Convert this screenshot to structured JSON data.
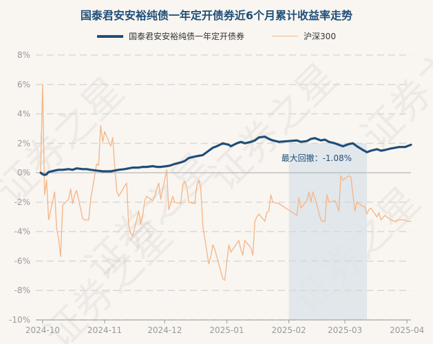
{
  "chart_data": {
    "type": "line",
    "title": "国泰君安安裕纯债一年定开债券近6个月累计收益率走势",
    "x_ticks": [
      "2024-10",
      "2024-11",
      "2024-12",
      "2025-01",
      "2025-02",
      "2025-03",
      "2025-04"
    ],
    "y_ticks": [
      "8%",
      "6%",
      "4%",
      "2%",
      "0%",
      "-2%",
      "-4%",
      "-6%",
      "-8%",
      "-10%"
    ],
    "ylim": [
      -10,
      8
    ],
    "x_range": [
      "2024-09-30",
      "2025-04-03"
    ],
    "grid": "horizontal dashed",
    "legend_position": "top",
    "series": [
      {
        "name": "国泰君安安裕纯债一年定开债券",
        "color": "#1f4e79",
        "points": [
          [
            "2024-09-30",
            0.0
          ],
          [
            "2024-10-01",
            -0.1
          ],
          [
            "2024-10-02",
            -0.15
          ],
          [
            "2024-10-03",
            -0.1
          ],
          [
            "2024-10-04",
            0.05
          ],
          [
            "2024-10-07",
            0.15
          ],
          [
            "2024-10-09",
            0.2
          ],
          [
            "2024-10-11",
            0.2
          ],
          [
            "2024-10-14",
            0.25
          ],
          [
            "2024-10-16",
            0.2
          ],
          [
            "2024-10-18",
            0.3
          ],
          [
            "2024-10-21",
            0.25
          ],
          [
            "2024-10-23",
            0.25
          ],
          [
            "2024-10-25",
            0.2
          ],
          [
            "2024-10-28",
            0.15
          ],
          [
            "2024-10-31",
            0.1
          ],
          [
            "2024-11-04",
            0.1
          ],
          [
            "2024-11-06",
            0.15
          ],
          [
            "2024-11-08",
            0.2
          ],
          [
            "2024-11-11",
            0.25
          ],
          [
            "2024-11-13",
            0.3
          ],
          [
            "2024-11-15",
            0.35
          ],
          [
            "2024-11-18",
            0.35
          ],
          [
            "2024-11-20",
            0.4
          ],
          [
            "2024-11-22",
            0.4
          ],
          [
            "2024-11-25",
            0.45
          ],
          [
            "2024-11-27",
            0.4
          ],
          [
            "2024-11-29",
            0.4
          ],
          [
            "2024-12-02",
            0.45
          ],
          [
            "2024-12-04",
            0.5
          ],
          [
            "2024-12-06",
            0.6
          ],
          [
            "2024-12-09",
            0.7
          ],
          [
            "2024-12-11",
            0.8
          ],
          [
            "2024-12-13",
            1.0
          ],
          [
            "2024-12-16",
            1.1
          ],
          [
            "2024-12-18",
            1.15
          ],
          [
            "2024-12-20",
            1.2
          ],
          [
            "2024-12-23",
            1.5
          ],
          [
            "2024-12-25",
            1.7
          ],
          [
            "2024-12-27",
            1.8
          ],
          [
            "2024-12-30",
            2.0
          ],
          [
            "2025-01-02",
            1.9
          ],
          [
            "2025-01-03",
            1.8
          ],
          [
            "2025-01-06",
            2.0
          ],
          [
            "2025-01-08",
            2.1
          ],
          [
            "2025-01-10",
            2.0
          ],
          [
            "2025-01-13",
            2.1
          ],
          [
            "2025-01-15",
            2.2
          ],
          [
            "2025-01-17",
            2.4
          ],
          [
            "2025-01-20",
            2.45
          ],
          [
            "2025-01-22",
            2.3
          ],
          [
            "2025-01-24",
            2.2
          ],
          [
            "2025-01-27",
            2.1
          ],
          [
            "2025-02-05",
            2.2
          ],
          [
            "2025-02-07",
            2.1
          ],
          [
            "2025-02-10",
            2.15
          ],
          [
            "2025-02-12",
            2.3
          ],
          [
            "2025-02-14",
            2.35
          ],
          [
            "2025-02-17",
            2.2
          ],
          [
            "2025-02-19",
            2.25
          ],
          [
            "2025-02-21",
            2.1
          ],
          [
            "2025-02-24",
            2.0
          ],
          [
            "2025-02-26",
            1.9
          ],
          [
            "2025-02-28",
            1.8
          ],
          [
            "2025-03-03",
            1.95
          ],
          [
            "2025-03-05",
            2.0
          ],
          [
            "2025-03-07",
            1.8
          ],
          [
            "2025-03-10",
            1.55
          ],
          [
            "2025-03-12",
            1.4
          ],
          [
            "2025-03-14",
            1.5
          ],
          [
            "2025-03-17",
            1.6
          ],
          [
            "2025-03-19",
            1.5
          ],
          [
            "2025-03-21",
            1.55
          ],
          [
            "2025-03-24",
            1.65
          ],
          [
            "2025-03-26",
            1.7
          ],
          [
            "2025-03-28",
            1.75
          ],
          [
            "2025-03-31",
            1.75
          ],
          [
            "2025-04-01",
            1.8
          ],
          [
            "2025-04-02",
            1.85
          ],
          [
            "2025-04-03",
            1.9
          ]
        ]
      },
      {
        "name": "沪深300",
        "color": "#f5b78a",
        "points": [
          [
            "2024-09-30",
            0.0
          ],
          [
            "2024-10-01",
            6.0
          ],
          [
            "2024-10-02",
            -1.5
          ],
          [
            "2024-10-03",
            -0.5
          ],
          [
            "2024-10-04",
            -3.2
          ],
          [
            "2024-10-07",
            -1.3
          ],
          [
            "2024-10-08",
            -3.8
          ],
          [
            "2024-10-09",
            -4.5
          ],
          [
            "2024-10-10",
            -5.7
          ],
          [
            "2024-10-11",
            -2.2
          ],
          [
            "2024-10-14",
            -1.8
          ],
          [
            "2024-10-15",
            -1.1
          ],
          [
            "2024-10-16",
            -2.1
          ],
          [
            "2024-10-17",
            -1.5
          ],
          [
            "2024-10-18",
            -1.2
          ],
          [
            "2024-10-21",
            -3.1
          ],
          [
            "2024-10-22",
            -3.2
          ],
          [
            "2024-10-24",
            -3.2
          ],
          [
            "2024-10-25",
            -1.8
          ],
          [
            "2024-10-28",
            0.6
          ],
          [
            "2024-10-29",
            0.5
          ],
          [
            "2024-10-30",
            3.2
          ],
          [
            "2024-10-31",
            2.1
          ],
          [
            "2024-11-01",
            2.8
          ],
          [
            "2024-11-04",
            1.8
          ],
          [
            "2024-11-05",
            2.4
          ],
          [
            "2024-11-06",
            0.5
          ],
          [
            "2024-11-07",
            -1.2
          ],
          [
            "2024-11-08",
            -1.6
          ],
          [
            "2024-11-11",
            -0.9
          ],
          [
            "2024-11-12",
            -0.7
          ],
          [
            "2024-11-13",
            -3.6
          ],
          [
            "2024-11-14",
            -4.1
          ],
          [
            "2024-11-15",
            -4.3
          ],
          [
            "2024-11-18",
            -2.6
          ],
          [
            "2024-11-19",
            -3.5
          ],
          [
            "2024-11-20",
            -2.9
          ],
          [
            "2024-11-21",
            -1.9
          ],
          [
            "2024-11-22",
            -1.6
          ],
          [
            "2024-11-25",
            -1.9
          ],
          [
            "2024-11-26",
            -1.6
          ],
          [
            "2024-11-27",
            -1.1
          ],
          [
            "2024-11-28",
            -0.7
          ],
          [
            "2024-11-29",
            -1.8
          ],
          [
            "2024-12-02",
            0.2
          ],
          [
            "2024-12-03",
            -2.5
          ],
          [
            "2024-12-04",
            -2.1
          ],
          [
            "2024-12-05",
            -1.6
          ],
          [
            "2024-12-06",
            -2.0
          ],
          [
            "2024-12-09",
            -2.1
          ],
          [
            "2024-12-10",
            -0.8
          ],
          [
            "2024-12-11",
            -0.6
          ],
          [
            "2024-12-12",
            -0.9
          ],
          [
            "2024-12-13",
            -2.0
          ],
          [
            "2024-12-16",
            -2.1
          ],
          [
            "2024-12-17",
            -0.9
          ],
          [
            "2024-12-18",
            -0.5
          ],
          [
            "2024-12-19",
            -1.0
          ],
          [
            "2024-12-20",
            -3.6
          ],
          [
            "2024-12-23",
            -6.2
          ],
          [
            "2024-12-24",
            -5.7
          ],
          [
            "2024-12-25",
            -4.9
          ],
          [
            "2024-12-26",
            -5.2
          ],
          [
            "2024-12-27",
            -5.7
          ],
          [
            "2024-12-30",
            -7.2
          ],
          [
            "2024-12-31",
            -7.3
          ],
          [
            "2025-01-02",
            -4.9
          ],
          [
            "2025-01-03",
            -5.4
          ],
          [
            "2025-01-06",
            -4.8
          ],
          [
            "2025-01-07",
            -4.6
          ],
          [
            "2025-01-08",
            -5.2
          ],
          [
            "2025-01-09",
            -5.6
          ],
          [
            "2025-01-10",
            -4.6
          ],
          [
            "2025-01-13",
            -5.1
          ],
          [
            "2025-01-14",
            -5.6
          ],
          [
            "2025-01-15",
            -3.3
          ],
          [
            "2025-01-16",
            -3.0
          ],
          [
            "2025-01-17",
            -2.8
          ],
          [
            "2025-01-20",
            -3.3
          ],
          [
            "2025-01-21",
            -2.7
          ],
          [
            "2025-01-22",
            -2.6
          ],
          [
            "2025-01-23",
            -1.5
          ],
          [
            "2025-01-24",
            -2.0
          ],
          [
            "2025-01-27",
            -2.1
          ],
          [
            "2025-02-05",
            -2.9
          ],
          [
            "2025-02-06",
            -1.7
          ],
          [
            "2025-02-07",
            -2.4
          ],
          [
            "2025-02-10",
            -1.9
          ],
          [
            "2025-02-11",
            -1.3
          ],
          [
            "2025-02-12",
            -2.0
          ],
          [
            "2025-02-13",
            -1.3
          ],
          [
            "2025-02-14",
            -1.7
          ],
          [
            "2025-02-17",
            -3.2
          ],
          [
            "2025-02-18",
            -3.3
          ],
          [
            "2025-02-19",
            -3.3
          ],
          [
            "2025-02-20",
            -1.5
          ],
          [
            "2025-02-21",
            -2.0
          ],
          [
            "2025-02-24",
            -1.9
          ],
          [
            "2025-02-25",
            -2.2
          ],
          [
            "2025-02-26",
            -2.6
          ],
          [
            "2025-02-27",
            -0.2
          ],
          [
            "2025-02-28",
            -0.5
          ],
          [
            "2025-03-03",
            -0.2
          ],
          [
            "2025-03-04",
            -0.3
          ],
          [
            "2025-03-05",
            -1.5
          ],
          [
            "2025-03-06",
            -2.6
          ],
          [
            "2025-03-07",
            -2.0
          ],
          [
            "2025-03-10",
            -2.3
          ],
          [
            "2025-03-11",
            -2.3
          ],
          [
            "2025-03-12",
            -2.8
          ],
          [
            "2025-03-13",
            -2.5
          ],
          [
            "2025-03-14",
            -2.4
          ],
          [
            "2025-03-17",
            -3.0
          ],
          [
            "2025-03-18",
            -2.7
          ],
          [
            "2025-03-19",
            -3.2
          ],
          [
            "2025-03-21",
            -2.9
          ],
          [
            "2025-03-24",
            -3.2
          ],
          [
            "2025-03-26",
            -3.3
          ],
          [
            "2025-03-28",
            -3.2
          ],
          [
            "2025-03-31",
            -3.2
          ],
          [
            "2025-04-01",
            -3.3
          ],
          [
            "2025-04-02",
            -3.3
          ],
          [
            "2025-04-03",
            -3.3
          ]
        ]
      }
    ],
    "drawdown": {
      "label": "最大回撤：-1.08%",
      "start": "2025-02-01",
      "end": "2025-03-12"
    }
  },
  "watermark": "证券之星",
  "colors": {
    "background": "#f9f6f1",
    "title": "#1f4e79",
    "fund": "#1f4e79",
    "index": "#f5b78a",
    "drawdown_band": "#dde4ea"
  }
}
